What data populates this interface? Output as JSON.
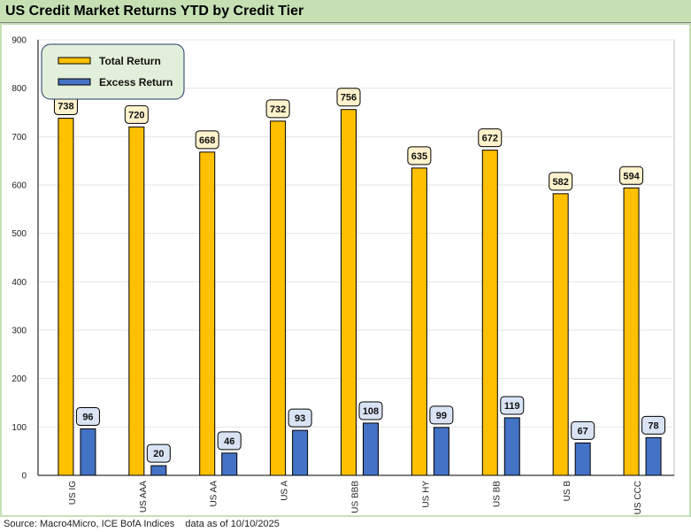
{
  "chart_data": {
    "type": "bar",
    "title": "US Credit Market Returns YTD by Credit Tier",
    "categories": [
      "US IG",
      "US AAA",
      "US AA",
      "US A",
      "US BBB",
      "US HY",
      "US BB",
      "US B",
      "US CCC"
    ],
    "series": [
      {
        "name": "Total Return",
        "values": [
          738,
          720,
          668,
          732,
          756,
          635,
          672,
          582,
          594
        ],
        "color": "#ffc000",
        "label_bg": "#fff2cc"
      },
      {
        "name": "Excess Return",
        "values": [
          96,
          20,
          46,
          93,
          108,
          99,
          119,
          67,
          78
        ],
        "color": "#4472c4",
        "label_bg": "#dae3f3"
      }
    ],
    "ylim": [
      0,
      900
    ],
    "yticks": [
      0,
      100,
      200,
      300,
      400,
      500,
      600,
      700,
      800,
      900
    ],
    "xlabel": "",
    "ylabel": "",
    "grid": true,
    "legend": "top-left",
    "colors": {
      "frame": "#c6e0b4",
      "plot_bg": "#ffffff",
      "legend_bg": "#e2efda",
      "grid": "#e6e6e6"
    }
  },
  "footer": {
    "source": "Source: Macro4Micro, ICE BofA Indices    data as of 10/10/2025"
  }
}
